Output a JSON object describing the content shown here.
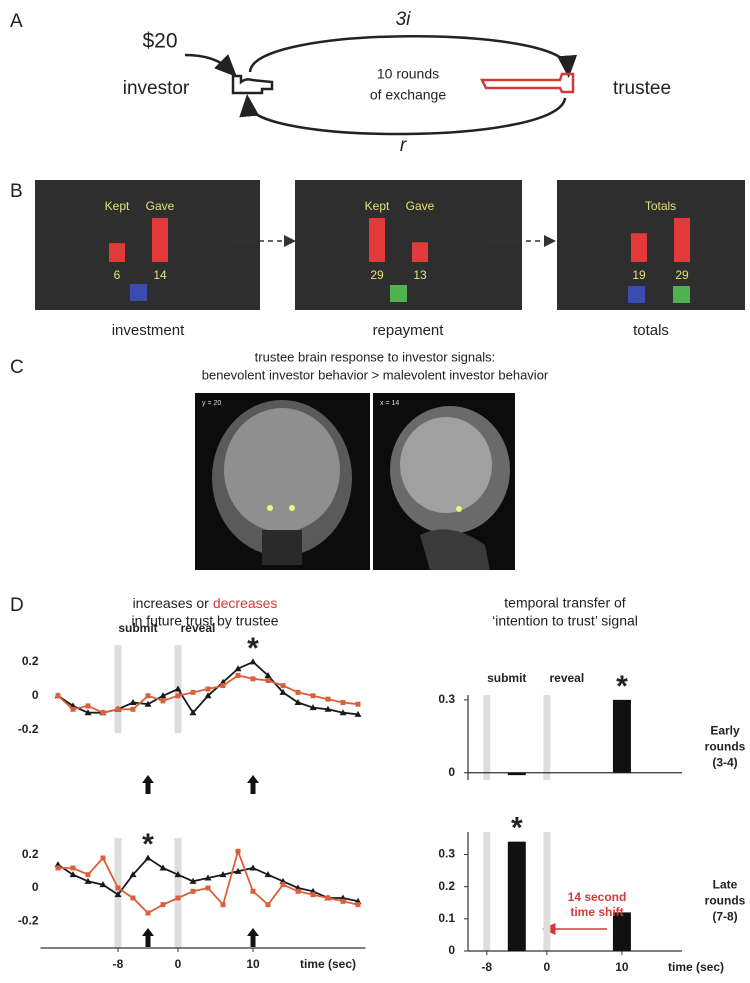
{
  "panel_a": {
    "label": "A",
    "endowment": "$20",
    "forward": "3i",
    "back": "r",
    "investor": "investor",
    "trustee": "trustee",
    "center": [
      "10 rounds",
      "of exchange"
    ]
  },
  "panel_b": {
    "label": "B",
    "screens": [
      {
        "caption": "investment",
        "headers": [
          "Kept",
          "Gave"
        ],
        "values": [
          6,
          14
        ]
      },
      {
        "caption": "repayment",
        "headers": [
          "Kept",
          "Gave"
        ],
        "values": [
          29,
          13
        ]
      },
      {
        "caption": "totals",
        "headers": [
          "Totals"
        ],
        "values": [
          19,
          29
        ]
      }
    ]
  },
  "panel_c": {
    "label": "C",
    "title": [
      "trustee brain response to investor signals:",
      "benevolent investor behavior > malevolent investor behavior"
    ],
    "images": [
      "y = 20",
      "x = 14"
    ]
  },
  "panel_d": {
    "label": "D",
    "left_title": {
      "start": "increases or",
      "red": "decreases",
      "line2": "in future trust by trustee"
    },
    "right_title": [
      "temporal transfer of",
      "‘intention to trust’ signal"
    ]
  },
  "chart_data": [
    {
      "type": "line",
      "x": [
        -16,
        -14,
        -12,
        -10,
        -8,
        -6,
        -4,
        -2,
        0,
        2,
        4,
        6,
        8,
        10,
        12,
        14,
        16,
        18,
        20,
        22,
        24
      ],
      "series": [
        {
          "color": "#1a1a1a",
          "values": [
            0.0,
            -0.06,
            -0.1,
            -0.1,
            -0.08,
            -0.04,
            -0.05,
            0.0,
            0.04,
            -0.1,
            0.0,
            0.08,
            0.16,
            0.2,
            0.12,
            0.02,
            -0.04,
            -0.07,
            -0.08,
            -0.1,
            -0.11
          ]
        },
        {
          "color": "#d9603b",
          "values": [
            0.0,
            -0.08,
            -0.06,
            -0.1,
            -0.08,
            -0.08,
            0.0,
            -0.03,
            0.0,
            0.02,
            0.04,
            0.06,
            0.12,
            0.1,
            0.09,
            0.06,
            0.02,
            0.0,
            -0.02,
            -0.04,
            -0.05
          ]
        }
      ],
      "xlim": [
        -17,
        25
      ],
      "ylim": [
        -0.22,
        0.3
      ],
      "yticks": [
        -0.2,
        0,
        0.2
      ],
      "events": [
        -8,
        0
      ],
      "event_labels": [
        "submit",
        "reveal"
      ],
      "arrows_x": [
        -4,
        10
      ],
      "highlight_x": 10,
      "highlight_mark": "*"
    },
    {
      "type": "line",
      "x": [
        -16,
        -14,
        -12,
        -10,
        -8,
        -6,
        -4,
        -2,
        0,
        2,
        4,
        6,
        8,
        10,
        12,
        14,
        16,
        18,
        20,
        22,
        24
      ],
      "series": [
        {
          "color": "#1a1a1a",
          "values": [
            0.14,
            0.08,
            0.04,
            0.02,
            -0.04,
            0.08,
            0.18,
            0.12,
            0.08,
            0.04,
            0.06,
            0.08,
            0.1,
            0.12,
            0.08,
            0.04,
            0.0,
            -0.02,
            -0.06,
            -0.06,
            -0.08
          ]
        },
        {
          "color": "#d9603b",
          "values": [
            0.12,
            0.12,
            0.08,
            0.18,
            0.0,
            -0.06,
            -0.15,
            -0.1,
            -0.06,
            -0.02,
            0.0,
            -0.1,
            0.22,
            -0.02,
            -0.1,
            0.02,
            -0.02,
            -0.04,
            -0.06,
            -0.08,
            -0.1
          ]
        }
      ],
      "xlim": [
        -17,
        25
      ],
      "ylim": [
        -0.36,
        0.3
      ],
      "yticks": [
        -0.2,
        0,
        0.2
      ],
      "xticks": [
        -8,
        0,
        10
      ],
      "xlabel": "time (sec)",
      "events": [
        -8,
        0
      ],
      "arrows_x": [
        -4,
        10
      ],
      "highlight_x": -4,
      "highlight_mark": "*"
    },
    {
      "type": "bar",
      "x": [
        -4,
        10
      ],
      "values": [
        -0.01,
        0.3
      ],
      "color": "#111111",
      "xlim": [
        -10.5,
        18
      ],
      "ylim": [
        -0.03,
        0.32
      ],
      "yticks": [
        0,
        0.3
      ],
      "events": [
        -8,
        0
      ],
      "event_labels": [
        "submit",
        "reveal"
      ],
      "highlight_x": 10,
      "highlight_mark": "*",
      "side_label": [
        "Early",
        "rounds",
        "(3-4)"
      ]
    },
    {
      "type": "bar",
      "x": [
        -4,
        10
      ],
      "values": [
        0.34,
        0.12
      ],
      "color": "#111111",
      "xlim": [
        -10.5,
        18
      ],
      "ylim": [
        0,
        0.37
      ],
      "yticks": [
        0,
        0.1,
        0.2,
        0.3
      ],
      "xticks": [
        -8,
        0,
        10
      ],
      "xlabel": "time (sec)",
      "events": [
        -8,
        0
      ],
      "highlight_x": -4,
      "highlight_mark": "*",
      "side_label": [
        "Late",
        "rounds",
        "(7-8)"
      ],
      "annotation": [
        "14 second",
        "time shift"
      ]
    }
  ]
}
